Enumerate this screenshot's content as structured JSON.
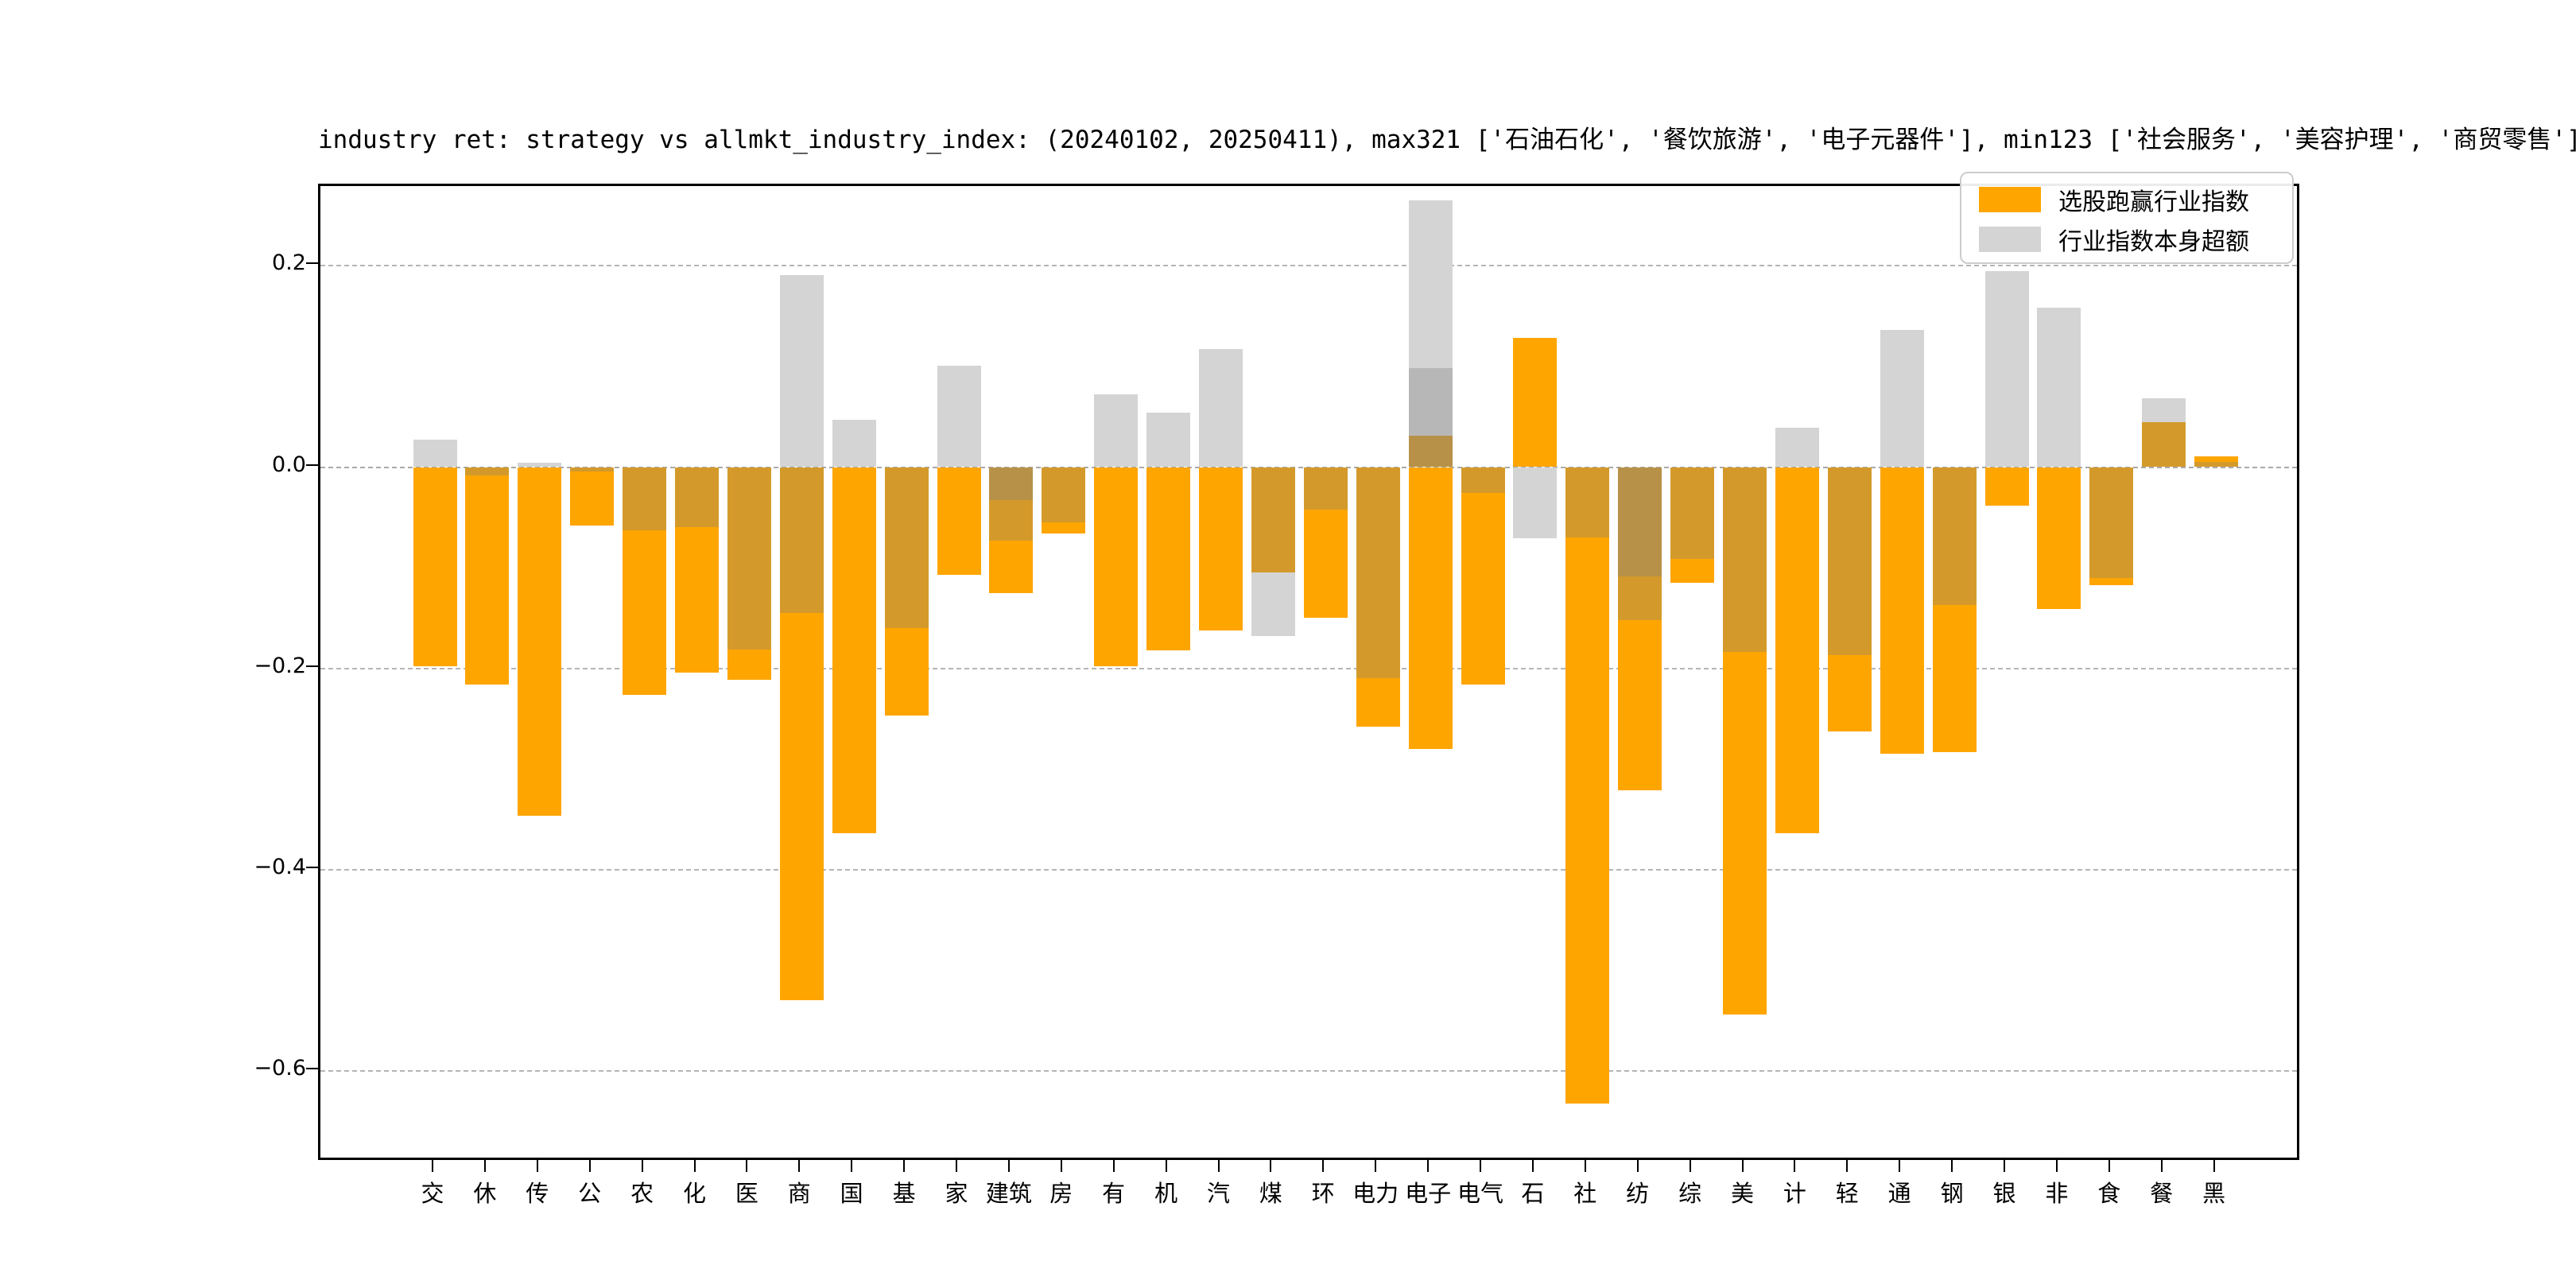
{
  "title": "industry ret: strategy vs allmkt_industry_index: (20240102, 20250411), max321 ['石油石化', '餐饮旅游', '电子元器件'], min123 ['社会服务', '美容护理', '商贸零售']",
  "legend": {
    "entries": [
      {
        "label": "选股跑赢行业指数",
        "color": "#FFA500"
      },
      {
        "label": "行业指数本身超额",
        "color": "#D4D4D4"
      }
    ],
    "position": "upper right"
  },
  "chart_data": {
    "type": "bar",
    "title": "industry ret: strategy vs allmkt_industry_index: (20240102, 20250411), max321 ['石油石化', '餐饮旅游', '电子元器件'], min123 ['社会服务', '美容护理', '商贸零售']",
    "xlabel": "",
    "ylabel": "",
    "ylim": [
      -0.69,
      0.28
    ],
    "yticks": [
      0.2,
      0.0,
      -0.2,
      -0.4,
      -0.6
    ],
    "ytick_labels": [
      "0.2",
      "0.0",
      "−0.2",
      "−0.4",
      "−0.6"
    ],
    "grid": "horizontal dashed",
    "legend_series": [
      "选股跑赢行业指数",
      "行业指数本身超额"
    ],
    "shades": {
      "orange": "#FFA500",
      "orange_under_gray": "#D39A2B",
      "orange_under_gray2": "#B79148",
      "gray": "#D4D4D4",
      "gray2": "#B7B7B7"
    },
    "categories": [
      "交",
      "休",
      "传",
      "公",
      "农",
      "化",
      "医",
      "商",
      "国",
      "基",
      "家",
      "建筑",
      "房",
      "有",
      "机",
      "汽",
      "煤",
      "环",
      "电力",
      "电子",
      "电气",
      "石",
      "社",
      "纺",
      "综",
      "美",
      "计",
      "轻",
      "通",
      "钢",
      "银",
      "非",
      "食",
      "餐",
      "黑"
    ],
    "bars": [
      {
        "label": "交",
        "segments": [
          {
            "v0": 0.027,
            "v1": 0,
            "shade": "gray"
          },
          {
            "v0": 0,
            "v1": -0.198,
            "shade": "orange"
          }
        ]
      },
      {
        "label": "休",
        "segments": [
          {
            "v0": 0,
            "v1": -0.008,
            "shade": "orange_under_gray"
          },
          {
            "v0": -0.008,
            "v1": -0.216,
            "shade": "orange"
          }
        ]
      },
      {
        "label": "传",
        "segments": [
          {
            "v0": 0.004,
            "v1": 0,
            "shade": "gray"
          },
          {
            "v0": 0,
            "v1": -0.346,
            "shade": "orange"
          }
        ]
      },
      {
        "label": "公",
        "segments": [
          {
            "v0": 0,
            "v1": -0.004,
            "shade": "orange_under_gray"
          },
          {
            "v0": -0.004,
            "v1": -0.058,
            "shade": "orange"
          }
        ]
      },
      {
        "label": "农",
        "segments": [
          {
            "v0": 0,
            "v1": -0.063,
            "shade": "orange_under_gray"
          },
          {
            "v0": -0.063,
            "v1": -0.226,
            "shade": "orange"
          }
        ]
      },
      {
        "label": "化",
        "segments": [
          {
            "v0": 0,
            "v1": -0.06,
            "shade": "orange_under_gray"
          },
          {
            "v0": -0.06,
            "v1": -0.204,
            "shade": "orange"
          }
        ]
      },
      {
        "label": "医",
        "segments": [
          {
            "v0": 0,
            "v1": -0.181,
            "shade": "orange_under_gray"
          },
          {
            "v0": -0.181,
            "v1": -0.211,
            "shade": "orange"
          }
        ]
      },
      {
        "label": "商",
        "segments": [
          {
            "v0": 0.191,
            "v1": 0,
            "shade": "gray"
          },
          {
            "v0": 0,
            "v1": -0.145,
            "shade": "orange_under_gray"
          },
          {
            "v0": -0.145,
            "v1": -0.53,
            "shade": "orange"
          }
        ]
      },
      {
        "label": "国",
        "segments": [
          {
            "v0": 0.047,
            "v1": 0,
            "shade": "gray"
          },
          {
            "v0": 0,
            "v1": -0.364,
            "shade": "orange"
          }
        ]
      },
      {
        "label": "基",
        "segments": [
          {
            "v0": 0,
            "v1": -0.16,
            "shade": "orange_under_gray"
          },
          {
            "v0": -0.16,
            "v1": -0.247,
            "shade": "orange"
          }
        ]
      },
      {
        "label": "家",
        "segments": [
          {
            "v0": 0.101,
            "v1": 0,
            "shade": "gray"
          },
          {
            "v0": 0,
            "v1": -0.107,
            "shade": "orange"
          }
        ]
      },
      {
        "label": "建筑",
        "segments": [
          {
            "v0": 0,
            "v1": -0.033,
            "shade": "orange_under_gray2"
          },
          {
            "v0": -0.033,
            "v1": -0.073,
            "shade": "orange_under_gray"
          },
          {
            "v0": -0.073,
            "v1": -0.125,
            "shade": "orange"
          }
        ]
      },
      {
        "label": "房",
        "segments": [
          {
            "v0": 0,
            "v1": -0.055,
            "shade": "orange_under_gray"
          },
          {
            "v0": -0.055,
            "v1": -0.066,
            "shade": "orange"
          }
        ]
      },
      {
        "label": "有",
        "segments": [
          {
            "v0": 0.072,
            "v1": 0,
            "shade": "gray"
          },
          {
            "v0": 0,
            "v1": -0.198,
            "shade": "orange"
          }
        ]
      },
      {
        "label": "机",
        "segments": [
          {
            "v0": 0.054,
            "v1": 0,
            "shade": "gray"
          },
          {
            "v0": 0,
            "v1": -0.182,
            "shade": "orange"
          }
        ]
      },
      {
        "label": "汽",
        "segments": [
          {
            "v0": 0.117,
            "v1": 0,
            "shade": "gray"
          },
          {
            "v0": 0,
            "v1": -0.162,
            "shade": "orange"
          }
        ]
      },
      {
        "label": "煤",
        "segments": [
          {
            "v0": 0,
            "v1": -0.105,
            "shade": "orange_under_gray"
          },
          {
            "v0": -0.105,
            "v1": -0.168,
            "shade": "gray"
          }
        ]
      },
      {
        "label": "环",
        "segments": [
          {
            "v0": 0,
            "v1": -0.042,
            "shade": "orange_under_gray"
          },
          {
            "v0": -0.042,
            "v1": -0.15,
            "shade": "orange"
          }
        ]
      },
      {
        "label": "电力",
        "segments": [
          {
            "v0": 0,
            "v1": -0.21,
            "shade": "orange_under_gray"
          },
          {
            "v0": -0.21,
            "v1": -0.258,
            "shade": "orange"
          }
        ]
      },
      {
        "label": "电子",
        "segments": [
          {
            "v0": 0.265,
            "v1": 0.098,
            "shade": "gray"
          },
          {
            "v0": 0.098,
            "v1": 0.031,
            "shade": "gray2"
          },
          {
            "v0": 0.031,
            "v1": 0,
            "shade": "orange_under_gray2"
          },
          {
            "v0": 0,
            "v1": -0.28,
            "shade": "orange"
          }
        ]
      },
      {
        "label": "电气",
        "segments": [
          {
            "v0": 0,
            "v1": -0.026,
            "shade": "orange_under_gray"
          },
          {
            "v0": -0.026,
            "v1": -0.216,
            "shade": "orange"
          }
        ]
      },
      {
        "label": "石",
        "segments": [
          {
            "v0": 0.128,
            "v1": 0,
            "shade": "orange"
          },
          {
            "v0": 0,
            "v1": -0.071,
            "shade": "gray"
          }
        ]
      },
      {
        "label": "社",
        "segments": [
          {
            "v0": 0,
            "v1": -0.07,
            "shade": "orange_under_gray"
          },
          {
            "v0": -0.07,
            "v1": -0.632,
            "shade": "orange"
          }
        ]
      },
      {
        "label": "纺",
        "segments": [
          {
            "v0": 0,
            "v1": -0.109,
            "shade": "orange_under_gray2"
          },
          {
            "v0": -0.109,
            "v1": -0.152,
            "shade": "orange_under_gray"
          },
          {
            "v0": -0.152,
            "v1": -0.321,
            "shade": "orange"
          }
        ]
      },
      {
        "label": "综",
        "segments": [
          {
            "v0": 0,
            "v1": -0.091,
            "shade": "orange_under_gray"
          },
          {
            "v0": -0.091,
            "v1": -0.115,
            "shade": "orange"
          }
        ]
      },
      {
        "label": "美",
        "segments": [
          {
            "v0": 0,
            "v1": -0.184,
            "shade": "orange_under_gray"
          },
          {
            "v0": -0.184,
            "v1": -0.544,
            "shade": "orange"
          }
        ]
      },
      {
        "label": "计",
        "segments": [
          {
            "v0": 0.039,
            "v1": 0,
            "shade": "gray"
          },
          {
            "v0": 0,
            "v1": -0.364,
            "shade": "orange"
          }
        ]
      },
      {
        "label": "轻",
        "segments": [
          {
            "v0": 0,
            "v1": -0.187,
            "shade": "orange_under_gray"
          },
          {
            "v0": -0.187,
            "v1": -0.263,
            "shade": "orange"
          }
        ]
      },
      {
        "label": "通",
        "segments": [
          {
            "v0": 0.136,
            "v1": 0,
            "shade": "gray"
          },
          {
            "v0": 0,
            "v1": -0.285,
            "shade": "orange"
          }
        ]
      },
      {
        "label": "钢",
        "segments": [
          {
            "v0": 0,
            "v1": -0.137,
            "shade": "orange_under_gray"
          },
          {
            "v0": -0.137,
            "v1": -0.283,
            "shade": "orange"
          }
        ]
      },
      {
        "label": "银",
        "segments": [
          {
            "v0": 0.195,
            "v1": 0,
            "shade": "gray"
          },
          {
            "v0": 0,
            "v1": -0.038,
            "shade": "orange"
          }
        ]
      },
      {
        "label": "非",
        "segments": [
          {
            "v0": 0.158,
            "v1": 0,
            "shade": "gray"
          },
          {
            "v0": 0,
            "v1": -0.141,
            "shade": "orange"
          }
        ]
      },
      {
        "label": "食",
        "segments": [
          {
            "v0": 0,
            "v1": -0.11,
            "shade": "orange_under_gray"
          },
          {
            "v0": -0.11,
            "v1": -0.117,
            "shade": "orange"
          }
        ]
      },
      {
        "label": "餐",
        "segments": [
          {
            "v0": 0.068,
            "v1": 0.045,
            "shade": "gray"
          },
          {
            "v0": 0.045,
            "v1": 0,
            "shade": "orange_under_gray"
          }
        ]
      },
      {
        "label": "黑",
        "segments": [
          {
            "v0": 0.011,
            "v1": 0.005,
            "shade": "orange"
          },
          {
            "v0": 0.005,
            "v1": 0,
            "shade": "orange_under_gray"
          }
        ]
      }
    ]
  }
}
